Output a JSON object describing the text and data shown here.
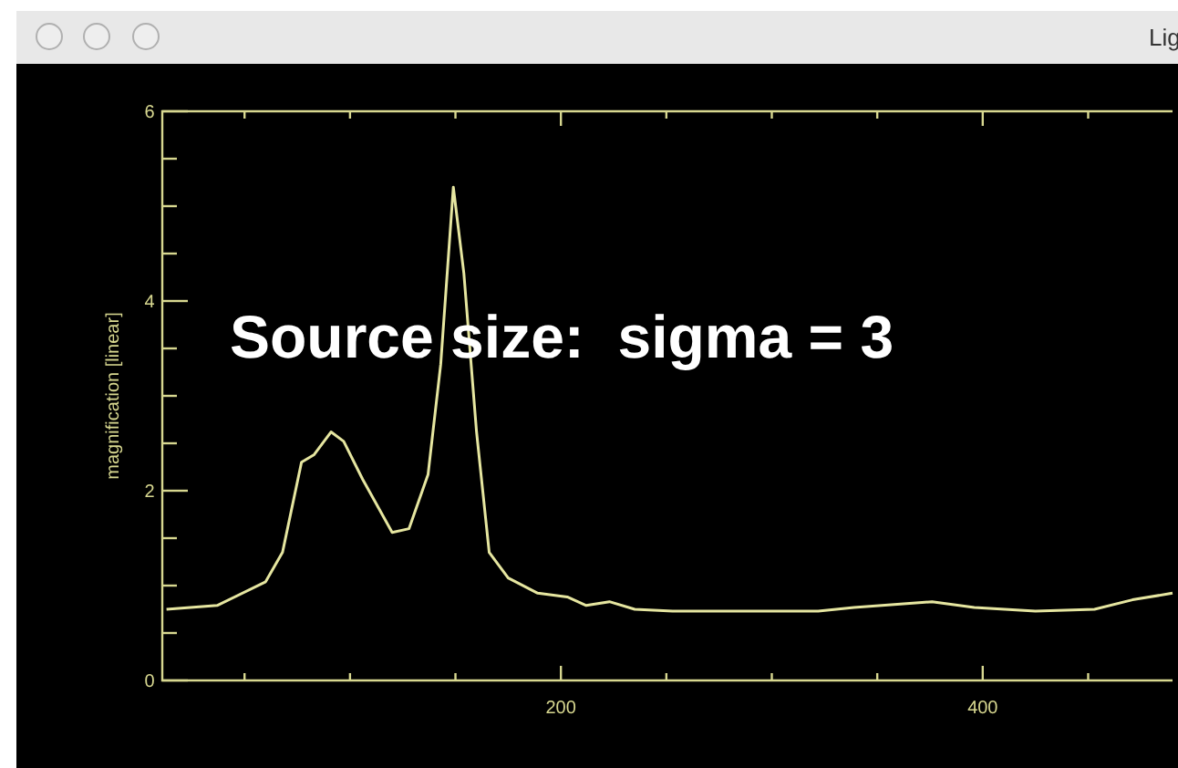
{
  "chart_data": {
    "type": "line",
    "title": "Lig",
    "ylabel": "magnification [linear]",
    "annotations": [
      "Source size:  sigma = 3"
    ],
    "xlim": [
      11,
      490
    ],
    "ylim": [
      0,
      6
    ],
    "xticks": [
      {
        "value": 50,
        "label": null
      },
      {
        "value": 100,
        "label": null
      },
      {
        "value": 150,
        "label": null
      },
      200,
      {
        "value": 250,
        "label": null
      },
      {
        "value": 300,
        "label": null
      },
      {
        "value": 350,
        "label": null
      },
      400,
      {
        "value": 450,
        "label": null
      }
    ],
    "yticks": [
      0,
      {
        "value": 0.5,
        "label": null
      },
      {
        "value": 1,
        "label": null
      },
      {
        "value": 1.5,
        "label": null
      },
      2,
      {
        "value": 2.5,
        "label": null
      },
      {
        "value": 3,
        "label": null
      },
      {
        "value": 3.5,
        "label": null
      },
      4,
      {
        "value": 4.5,
        "label": null
      },
      {
        "value": 5,
        "label": null
      },
      {
        "value": 5.5,
        "label": null
      },
      6
    ],
    "series": [
      {
        "color": "#e6e6a0",
        "x": [
          13,
          37,
          60,
          68,
          77,
          83,
          91,
          97,
          106,
          120,
          128,
          137,
          143,
          149,
          154,
          160,
          166,
          175,
          189,
          203,
          212,
          223,
          235,
          253,
          281,
          322,
          339,
          376,
          396,
          425,
          453,
          471,
          490
        ],
        "values": [
          0.75,
          0.79,
          1.04,
          1.35,
          2.3,
          2.38,
          2.62,
          2.52,
          2.12,
          1.56,
          1.6,
          2.17,
          3.33,
          5.2,
          4.29,
          2.62,
          1.35,
          1.08,
          0.92,
          0.88,
          0.79,
          0.83,
          0.75,
          0.73,
          0.73,
          0.73,
          0.77,
          0.83,
          0.77,
          0.73,
          0.75,
          0.85,
          0.92
        ]
      }
    ]
  }
}
